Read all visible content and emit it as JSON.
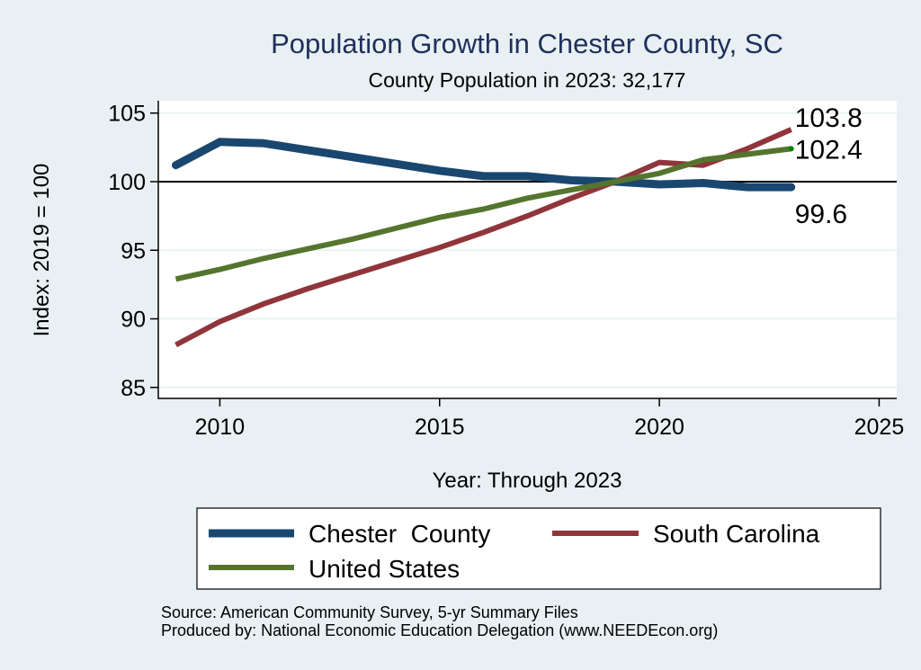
{
  "chart_data": {
    "type": "line",
    "title": "Population Growth in Chester County, SC",
    "subtitle": "County Population in 2023: 32,177",
    "xlabel": "Year: Through 2023",
    "ylabel": "Index: 2019 = 100",
    "xlim": [
      2008.6,
      2025.4
    ],
    "ylim": [
      84.2,
      105.9
    ],
    "xticks": [
      2010,
      2015,
      2020,
      2025
    ],
    "xtick_labels": [
      "2010",
      "2015",
      "2020",
      "2025"
    ],
    "yticks": [
      85,
      90,
      95,
      100,
      105
    ],
    "ytick_labels": [
      "85",
      "90",
      "95",
      "100",
      "105"
    ],
    "reference_line": 100,
    "grid": true,
    "x": [
      2009,
      2010,
      2011,
      2012,
      2013,
      2014,
      2015,
      2016,
      2017,
      2018,
      2019,
      2020,
      2021,
      2022,
      2023
    ],
    "series": [
      {
        "name": "Chester  County",
        "color": "#1a476f",
        "values": [
          101.2,
          102.9,
          102.8,
          102.3,
          101.8,
          101.3,
          100.8,
          100.4,
          100.4,
          100.1,
          100.0,
          99.8,
          99.9,
          99.6,
          99.6
        ],
        "end_label": "99.6"
      },
      {
        "name": "South Carolina",
        "color": "#90353b",
        "values": [
          88.1,
          89.8,
          91.1,
          92.2,
          93.2,
          94.2,
          95.2,
          96.3,
          97.5,
          98.8,
          100.0,
          101.4,
          101.2,
          102.4,
          103.8
        ],
        "end_label": "103.8"
      },
      {
        "name": "United States",
        "color": "#55752f",
        "values": [
          92.9,
          93.6,
          94.4,
          95.1,
          95.8,
          96.6,
          97.4,
          98.0,
          98.8,
          99.4,
          100.0,
          100.6,
          101.6,
          102.0,
          102.4
        ],
        "end_label": "102.4"
      }
    ],
    "legend": {
      "placement": "bottom",
      "entries": [
        "Chester  County",
        "South Carolina",
        "United States"
      ]
    },
    "notes": [
      "Source: American Community Survey, 5-yr Summary Files",
      "Produced by: National Economic Education Delegation (www.NEEDEcon.org)"
    ]
  },
  "colors": {
    "background": "#e8f0f3",
    "plot_background": "#ffffff",
    "title": "#1f2f5c",
    "grid": "#eaf2f3",
    "us_end_marker": "#008000"
  }
}
